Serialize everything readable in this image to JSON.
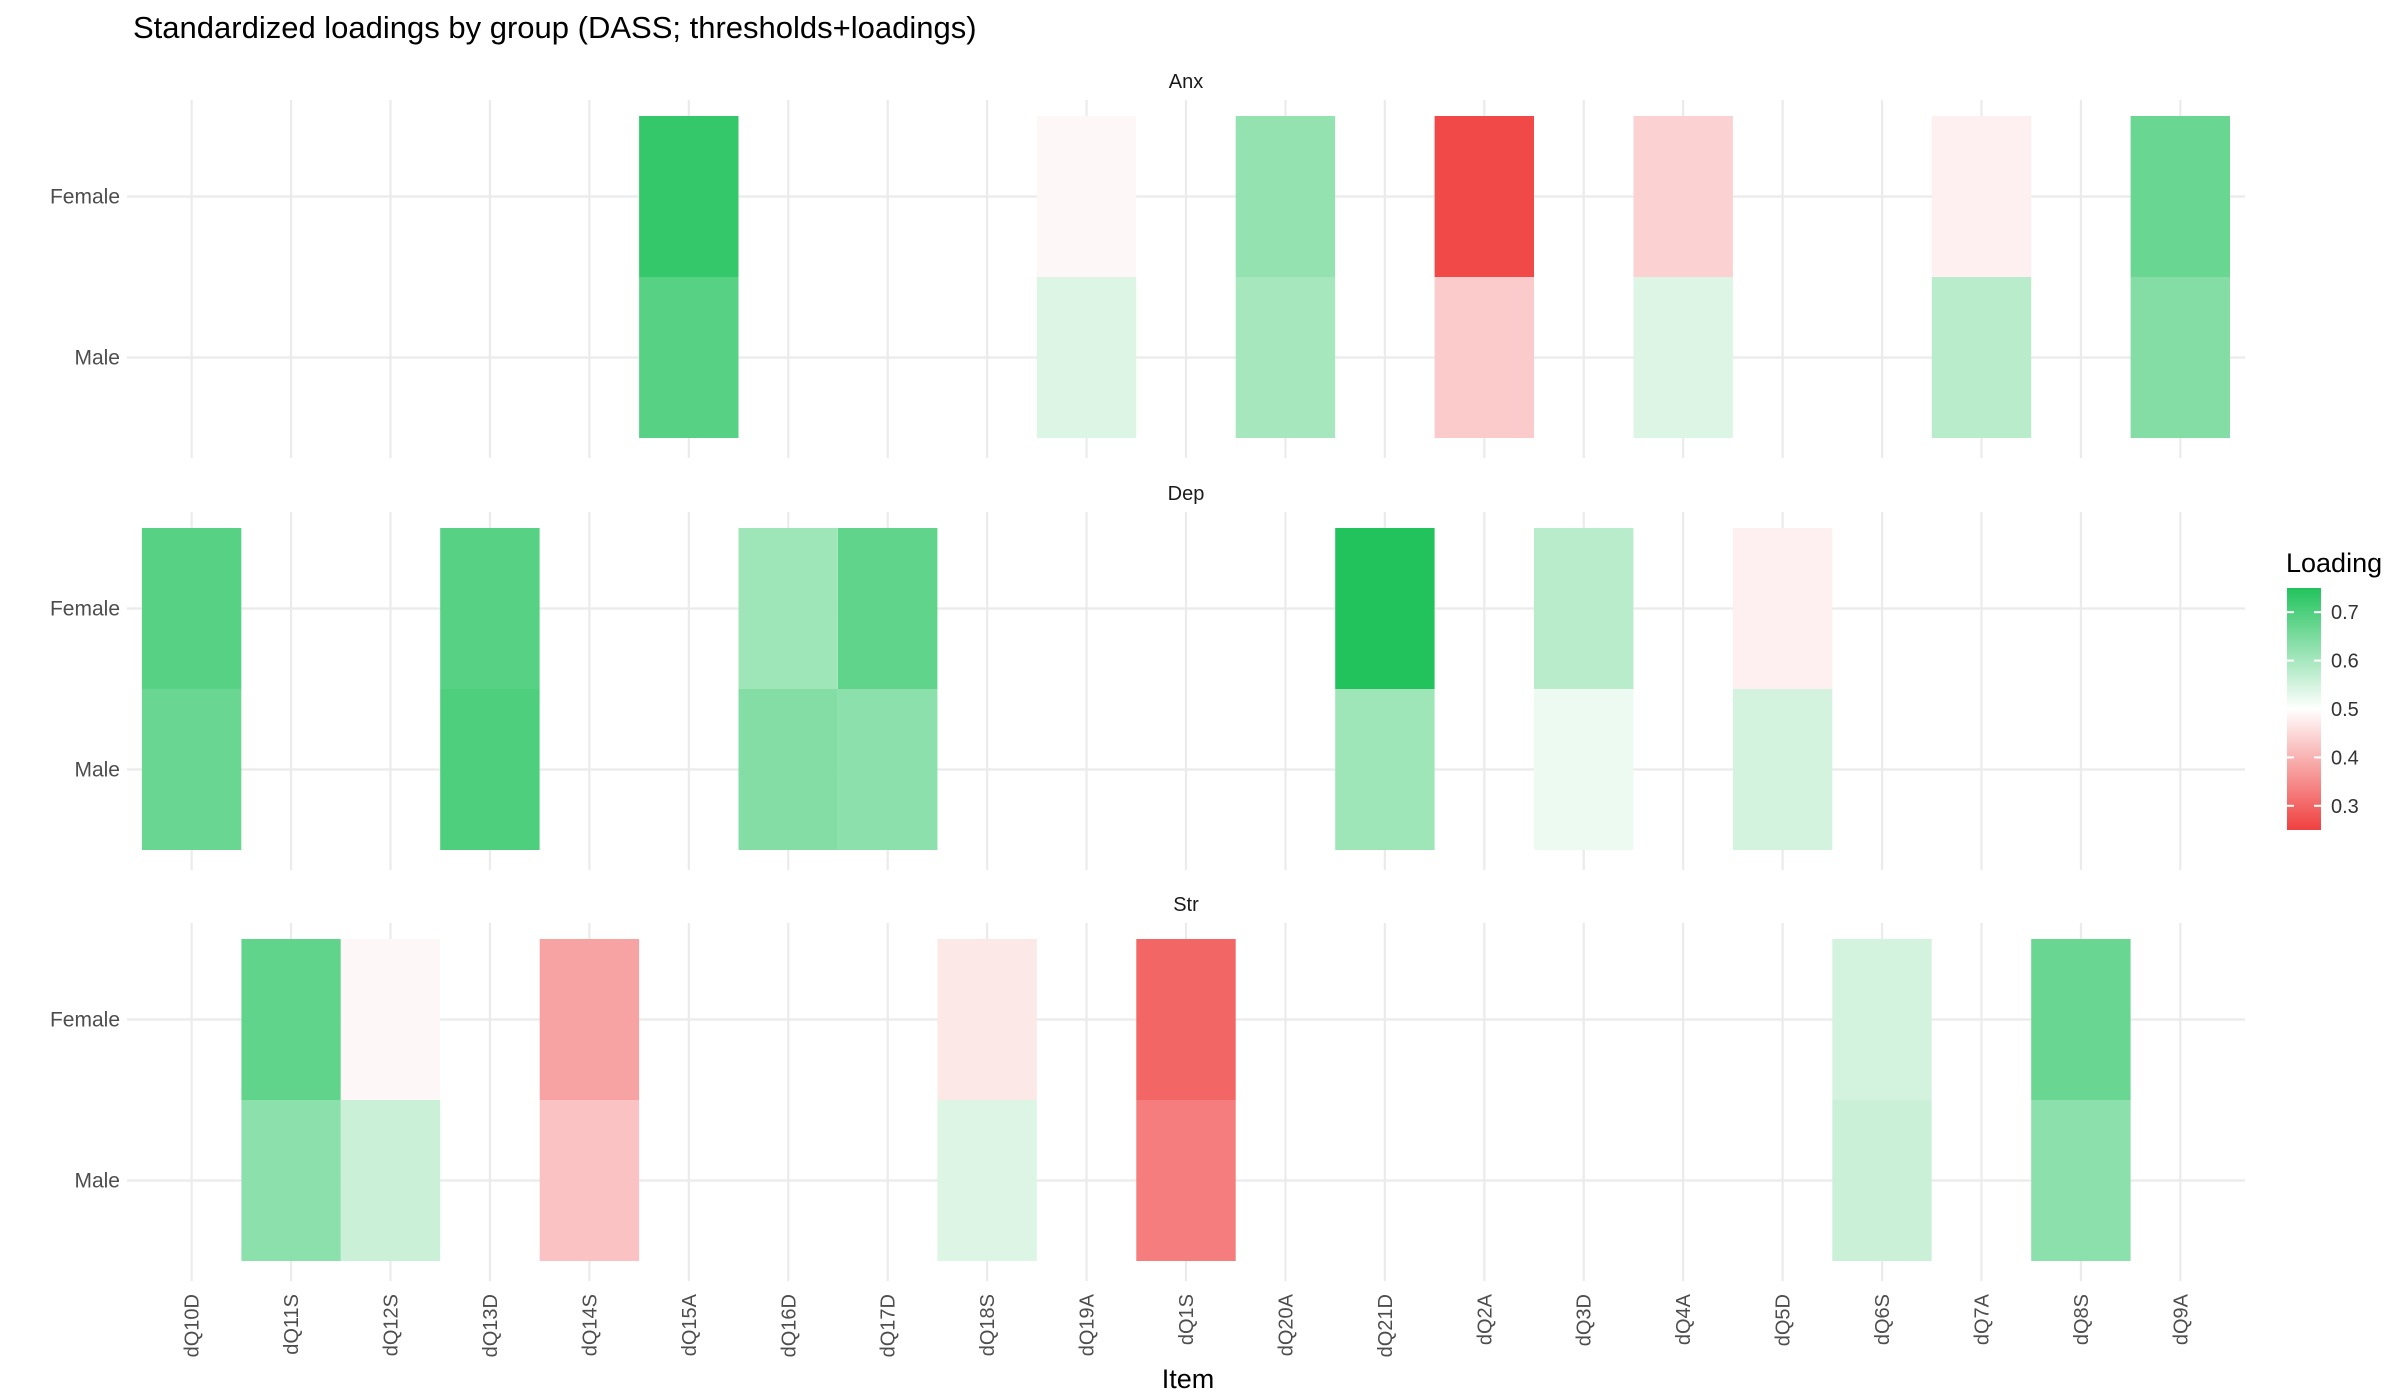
{
  "chart_data": {
    "type": "heatmap",
    "title": "Standardized loadings by group (DASS; thresholds+loadings)",
    "xlabel": "Item",
    "ylabel": "",
    "x_categories": [
      "dQ10D",
      "dQ11S",
      "dQ12S",
      "dQ13D",
      "dQ14S",
      "dQ15A",
      "dQ16D",
      "dQ17D",
      "dQ18S",
      "dQ19A",
      "dQ1S",
      "dQ20A",
      "dQ21D",
      "dQ2A",
      "dQ3D",
      "dQ4A",
      "dQ5D",
      "dQ6S",
      "dQ7A",
      "dQ8S",
      "dQ9A"
    ],
    "y_categories": [
      "Female",
      "Male"
    ],
    "legend": {
      "title": "Loading",
      "position": "right",
      "ticks": [
        0.3,
        0.4,
        0.5,
        0.6,
        0.7
      ],
      "range": [
        0.25,
        0.75
      ],
      "midpoint": 0.5,
      "low_color": "#f04040",
      "mid_color": "#ffffff",
      "high_color": "#22c35d"
    },
    "grid": true,
    "facets": [
      {
        "name": "Anx",
        "cells": [
          {
            "item": "dQ15A",
            "group": "Female",
            "value": 0.73
          },
          {
            "item": "dQ15A",
            "group": "Male",
            "value": 0.69
          },
          {
            "item": "dQ19A",
            "group": "Female",
            "value": 0.49
          },
          {
            "item": "dQ19A",
            "group": "Male",
            "value": 0.54
          },
          {
            "item": "dQ20A",
            "group": "Female",
            "value": 0.62
          },
          {
            "item": "dQ20A",
            "group": "Male",
            "value": 0.6
          },
          {
            "item": "dQ2A",
            "group": "Female",
            "value": 0.26
          },
          {
            "item": "dQ2A",
            "group": "Male",
            "value": 0.43
          },
          {
            "item": "dQ4A",
            "group": "Female",
            "value": 0.44
          },
          {
            "item": "dQ4A",
            "group": "Male",
            "value": 0.54
          },
          {
            "item": "dQ7A",
            "group": "Female",
            "value": 0.48
          },
          {
            "item": "dQ7A",
            "group": "Male",
            "value": 0.58
          },
          {
            "item": "dQ9A",
            "group": "Female",
            "value": 0.67
          },
          {
            "item": "dQ9A",
            "group": "Male",
            "value": 0.64
          }
        ]
      },
      {
        "name": "Dep",
        "cells": [
          {
            "item": "dQ10D",
            "group": "Female",
            "value": 0.69
          },
          {
            "item": "dQ10D",
            "group": "Male",
            "value": 0.67
          },
          {
            "item": "dQ13D",
            "group": "Female",
            "value": 0.69
          },
          {
            "item": "dQ13D",
            "group": "Male",
            "value": 0.7
          },
          {
            "item": "dQ16D",
            "group": "Female",
            "value": 0.61
          },
          {
            "item": "dQ16D",
            "group": "Male",
            "value": 0.64
          },
          {
            "item": "dQ17D",
            "group": "Female",
            "value": 0.68
          },
          {
            "item": "dQ17D",
            "group": "Male",
            "value": 0.63
          },
          {
            "item": "dQ21D",
            "group": "Female",
            "value": 0.75
          },
          {
            "item": "dQ21D",
            "group": "Male",
            "value": 0.61
          },
          {
            "item": "dQ3D",
            "group": "Female",
            "value": 0.58
          },
          {
            "item": "dQ3D",
            "group": "Male",
            "value": 0.52
          },
          {
            "item": "dQ5D",
            "group": "Female",
            "value": 0.48
          },
          {
            "item": "dQ5D",
            "group": "Male",
            "value": 0.55
          }
        ]
      },
      {
        "name": "Str",
        "cells": [
          {
            "item": "dQ11S",
            "group": "Female",
            "value": 0.68
          },
          {
            "item": "dQ11S",
            "group": "Male",
            "value": 0.63
          },
          {
            "item": "dQ12S",
            "group": "Female",
            "value": 0.49
          },
          {
            "item": "dQ12S",
            "group": "Male",
            "value": 0.56
          },
          {
            "item": "dQ14S",
            "group": "Female",
            "value": 0.38
          },
          {
            "item": "dQ14S",
            "group": "Male",
            "value": 0.42
          },
          {
            "item": "dQ18S",
            "group": "Female",
            "value": 0.47
          },
          {
            "item": "dQ18S",
            "group": "Male",
            "value": 0.54
          },
          {
            "item": "dQ1S",
            "group": "Female",
            "value": 0.3
          },
          {
            "item": "dQ1S",
            "group": "Male",
            "value": 0.33
          },
          {
            "item": "dQ6S",
            "group": "Female",
            "value": 0.55
          },
          {
            "item": "dQ6S",
            "group": "Male",
            "value": 0.56
          },
          {
            "item": "dQ8S",
            "group": "Female",
            "value": 0.67
          },
          {
            "item": "dQ8S",
            "group": "Male",
            "value": 0.63
          }
        ]
      }
    ]
  }
}
